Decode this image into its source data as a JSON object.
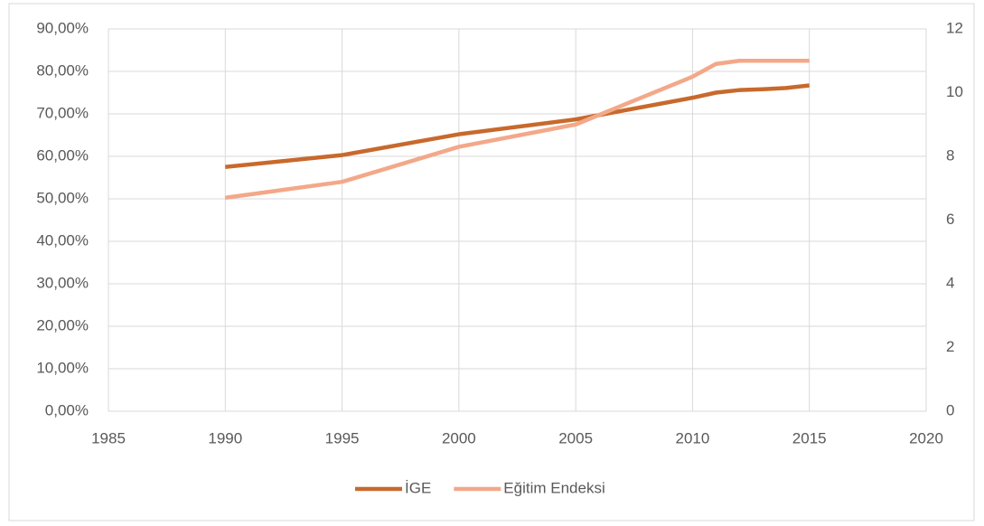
{
  "chart_data": {
    "type": "line",
    "x": [
      1990,
      1995,
      2000,
      2005,
      2010,
      2011,
      2012,
      2013,
      2014,
      2015
    ],
    "series": [
      {
        "name": "İGE",
        "color": "#c8692c",
        "values": [
          57.5,
          60.3,
          65.2,
          68.7,
          73.8,
          75.0,
          75.6,
          75.8,
          76.1,
          76.7
        ]
      },
      {
        "name": "Eğitim Endeksi",
        "color": "#f3a889",
        "axis": "y2",
        "values": [
          6.7,
          7.2,
          8.3,
          9.0,
          10.5,
          10.9,
          11.0,
          11.0,
          11.0,
          11.0
        ]
      }
    ],
    "xlim": [
      1985,
      2020
    ],
    "xticks": [
      1985,
      1990,
      1995,
      2000,
      2005,
      2010,
      2015,
      2020
    ],
    "ylim": [
      0,
      90
    ],
    "yticks": [
      {
        "value": 0,
        "label": "0,00%"
      },
      {
        "value": 10,
        "label": "10,00%"
      },
      {
        "value": 20,
        "label": "20,00%"
      },
      {
        "value": 30,
        "label": "30,00%"
      },
      {
        "value": 40,
        "label": "40,00%"
      },
      {
        "value": 50,
        "label": "50,00%"
      },
      {
        "value": 60,
        "label": "60,00%"
      },
      {
        "value": 70,
        "label": "70,00%"
      },
      {
        "value": 80,
        "label": "80,00%"
      },
      {
        "value": 90,
        "label": "90,00%"
      }
    ],
    "y2lim": [
      0,
      12
    ],
    "y2ticks": [
      0,
      2,
      4,
      6,
      8,
      10,
      12
    ],
    "grid": true,
    "legend": "bottom"
  }
}
